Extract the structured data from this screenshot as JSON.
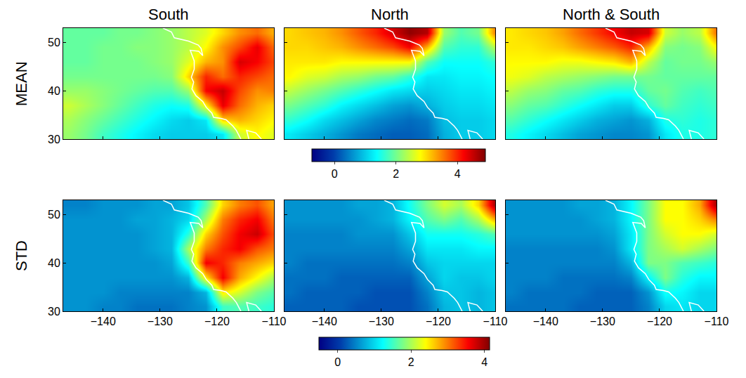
{
  "chart_data": {
    "type": "heatmap",
    "columns": [
      "South",
      "North",
      "North & South"
    ],
    "x": [
      -146,
      -143,
      -140,
      -137,
      -134,
      -131,
      -128,
      -125,
      -122,
      -119,
      -116,
      -113,
      -110
    ],
    "y": [
      31,
      34,
      37,
      40,
      43,
      46,
      49,
      52
    ],
    "xlim": [
      -147,
      -110
    ],
    "xticks": [
      -140,
      -130,
      -120,
      -110
    ],
    "ylim": [
      30,
      53
    ],
    "yticks": [
      30,
      40,
      50
    ],
    "coastline": {
      "lon": [
        -115.8,
        -116.6,
        -117.2,
        -118.4,
        -119.3,
        -120.6,
        -120.9,
        -121.9,
        -122.5,
        -123.0,
        -123.7,
        -124.4,
        -124.1,
        -124.5,
        -124.0,
        -124.0,
        -124.7,
        -123.2,
        -122.5,
        -122.8,
        -123.3,
        -125.0,
        -127.5,
        -128.0,
        -129.5,
        null,
        -114.4,
        -114.8,
        -113.2,
        -112.2
      ],
      "lat": [
        30.0,
        31.8,
        32.7,
        34.0,
        34.3,
        34.5,
        35.4,
        36.6,
        37.8,
        38.3,
        39.0,
        40.4,
        41.8,
        42.8,
        44.5,
        46.2,
        48.4,
        48.2,
        47.3,
        48.8,
        49.5,
        50.3,
        51.0,
        52.2,
        53.0,
        null,
        30.0,
        31.8,
        31.3,
        30.0
      ]
    },
    "rows": [
      {
        "label": "MEAN",
        "color_range": [
          -0.75,
          4.9
        ],
        "color_ticks": [
          0,
          2,
          4
        ],
        "cells": [
          [
            [
              2.2,
              2.0,
              1.7,
              1.5,
              1.3,
              1.1,
              1.0,
              1.0,
              1.0,
              1.2,
              2.5,
              2.8,
              2.6
            ],
            [
              2.3,
              2.1,
              1.9,
              1.7,
              1.5,
              1.3,
              1.1,
              1.0,
              1.2,
              3.0,
              3.2,
              3.0,
              2.8
            ],
            [
              2.5,
              2.3,
              2.1,
              1.9,
              1.7,
              1.5,
              1.4,
              1.5,
              2.8,
              4.3,
              3.6,
              3.2,
              3.0
            ],
            [
              2.2,
              2.2,
              2.1,
              2.0,
              1.9,
              1.8,
              1.8,
              2.2,
              4.2,
              4.5,
              3.8,
              3.4,
              3.5
            ],
            [
              2.0,
              2.0,
              2.0,
              2.0,
              2.0,
              2.0,
              2.1,
              3.0,
              4.0,
              3.6,
              4.0,
              3.8,
              3.6
            ],
            [
              1.9,
              1.9,
              2.0,
              2.0,
              2.0,
              2.1,
              2.2,
              2.6,
              3.2,
              3.4,
              4.4,
              4.2,
              3.8
            ],
            [
              1.9,
              1.9,
              2.0,
              2.0,
              2.1,
              2.1,
              2.2,
              2.4,
              2.8,
              3.4,
              3.8,
              4.3,
              3.6
            ],
            [
              1.9,
              1.9,
              1.9,
              2.0,
              2.0,
              2.1,
              2.2,
              2.4,
              2.6,
              3.0,
              3.4,
              3.6,
              3.2
            ]
          ],
          [
            [
              1.2,
              1.0,
              0.8,
              0.6,
              0.4,
              0.3,
              0.2,
              0.2,
              0.3,
              0.8,
              1.0,
              1.0,
              1.1
            ],
            [
              1.6,
              1.4,
              1.1,
              0.9,
              0.7,
              0.5,
              0.4,
              0.3,
              0.4,
              0.9,
              1.0,
              1.0,
              1.1
            ],
            [
              2.0,
              1.8,
              1.6,
              1.3,
              1.1,
              0.9,
              0.7,
              0.6,
              0.8,
              1.0,
              1.1,
              1.1,
              1.2
            ],
            [
              2.4,
              2.2,
              2.0,
              1.8,
              1.6,
              1.4,
              1.2,
              1.1,
              1.0,
              1.1,
              1.2,
              1.2,
              1.3
            ],
            [
              2.8,
              2.6,
              2.5,
              2.3,
              2.2,
              2.0,
              1.9,
              1.6,
              1.2,
              1.2,
              1.3,
              1.3,
              1.4
            ],
            [
              2.9,
              2.9,
              2.9,
              2.8,
              2.8,
              2.8,
              2.8,
              2.8,
              1.8,
              1.4,
              1.4,
              1.4,
              1.6
            ],
            [
              3.0,
              3.0,
              3.1,
              3.2,
              3.4,
              3.6,
              3.8,
              4.2,
              3.2,
              1.8,
              1.6,
              1.6,
              2.4
            ],
            [
              3.0,
              3.1,
              3.2,
              3.4,
              3.7,
              4.0,
              4.4,
              4.8,
              4.6,
              2.2,
              1.8,
              2.0,
              3.5
            ]
          ],
          [
            [
              1.5,
              1.3,
              1.1,
              0.9,
              0.7,
              0.6,
              0.5,
              0.5,
              0.6,
              1.2,
              1.5,
              1.5,
              1.6
            ],
            [
              1.8,
              1.6,
              1.4,
              1.2,
              1.0,
              0.8,
              0.7,
              0.6,
              0.8,
              1.5,
              1.6,
              1.5,
              1.6
            ],
            [
              2.1,
              1.9,
              1.8,
              1.6,
              1.4,
              1.2,
              1.0,
              1.0,
              1.6,
              1.9,
              1.7,
              1.6,
              1.7
            ],
            [
              2.4,
              2.2,
              2.1,
              1.9,
              1.8,
              1.6,
              1.5,
              1.5,
              1.9,
              2.0,
              1.8,
              1.7,
              1.8
            ],
            [
              2.7,
              2.6,
              2.4,
              2.3,
              2.2,
              2.1,
              2.0,
              2.0,
              2.0,
              1.9,
              1.9,
              1.9,
              1.9
            ],
            [
              2.8,
              2.8,
              2.8,
              2.7,
              2.7,
              2.8,
              2.9,
              3.2,
              2.4,
              1.9,
              2.0,
              2.0,
              2.2
            ],
            [
              2.9,
              2.9,
              3.0,
              3.1,
              3.3,
              3.5,
              3.7,
              4.0,
              3.2,
              2.1,
              2.0,
              2.1,
              2.8
            ],
            [
              2.9,
              3.0,
              3.1,
              3.3,
              3.6,
              3.9,
              4.2,
              4.5,
              4.4,
              2.5,
              2.2,
              2.4,
              3.6
            ]
          ]
        ]
      },
      {
        "label": "STD",
        "color_range": [
          -0.5,
          4.15
        ],
        "color_ticks": [
          0,
          2,
          4
        ],
        "cells": [
          [
            [
              0.6,
              0.6,
              0.5,
              0.5,
              0.4,
              0.4,
              0.4,
              0.5,
              0.6,
              1.5,
              1.6,
              1.5,
              1.4
            ],
            [
              0.6,
              0.6,
              0.6,
              0.5,
              0.5,
              0.5,
              0.5,
              0.5,
              0.8,
              2.5,
              2.2,
              1.8,
              1.6
            ],
            [
              0.6,
              0.6,
              0.6,
              0.6,
              0.6,
              0.6,
              0.6,
              0.8,
              2.5,
              3.6,
              2.8,
              2.4,
              2.0
            ],
            [
              0.6,
              0.6,
              0.6,
              0.6,
              0.6,
              0.6,
              0.7,
              1.5,
              3.6,
              3.4,
              3.0,
              2.8,
              2.6
            ],
            [
              0.6,
              0.6,
              0.6,
              0.6,
              0.6,
              0.7,
              0.8,
              2.0,
              3.0,
              3.4,
              3.6,
              3.2,
              3.0
            ],
            [
              0.6,
              0.6,
              0.6,
              0.6,
              0.6,
              0.7,
              0.8,
              1.4,
              2.6,
              3.2,
              3.6,
              3.8,
              3.2
            ],
            [
              0.6,
              0.6,
              0.6,
              0.6,
              0.7,
              0.7,
              0.8,
              1.0,
              2.0,
              3.0,
              3.4,
              3.6,
              3.0
            ],
            [
              0.5,
              0.5,
              0.6,
              0.6,
              0.6,
              0.7,
              0.7,
              0.9,
              1.6,
              2.6,
              3.0,
              3.2,
              2.8
            ]
          ],
          [
            [
              0.3,
              0.3,
              0.3,
              0.3,
              0.2,
              0.2,
              0.2,
              0.2,
              0.4,
              0.8,
              0.9,
              0.8,
              0.9
            ],
            [
              0.4,
              0.3,
              0.3,
              0.3,
              0.3,
              0.2,
              0.2,
              0.2,
              0.5,
              0.9,
              0.9,
              0.8,
              0.9
            ],
            [
              0.4,
              0.4,
              0.4,
              0.3,
              0.3,
              0.3,
              0.3,
              0.3,
              0.7,
              1.0,
              0.9,
              0.9,
              1.0
            ],
            [
              0.5,
              0.4,
              0.4,
              0.4,
              0.4,
              0.4,
              0.4,
              0.5,
              0.9,
              1.0,
              1.0,
              1.0,
              1.0
            ],
            [
              0.5,
              0.5,
              0.5,
              0.5,
              0.5,
              0.5,
              0.5,
              0.7,
              1.1,
              1.1,
              1.1,
              1.2,
              1.2
            ],
            [
              0.5,
              0.5,
              0.5,
              0.5,
              0.6,
              0.6,
              0.6,
              0.9,
              1.3,
              1.3,
              1.3,
              1.4,
              1.6
            ],
            [
              0.6,
              0.6,
              0.6,
              0.6,
              0.6,
              0.7,
              0.8,
              1.2,
              1.6,
              1.8,
              1.6,
              2.0,
              2.8
            ],
            [
              0.6,
              0.6,
              0.6,
              0.6,
              0.7,
              0.7,
              0.8,
              1.3,
              1.8,
              2.2,
              2.0,
              2.6,
              4.0
            ]
          ],
          [
            [
              0.4,
              0.4,
              0.4,
              0.4,
              0.3,
              0.3,
              0.3,
              0.3,
              0.5,
              1.0,
              1.1,
              1.0,
              1.0
            ],
            [
              0.5,
              0.4,
              0.4,
              0.4,
              0.4,
              0.3,
              0.3,
              0.3,
              0.6,
              1.3,
              1.2,
              1.0,
              1.0
            ],
            [
              0.5,
              0.5,
              0.5,
              0.4,
              0.4,
              0.4,
              0.4,
              0.5,
              1.2,
              1.8,
              1.4,
              1.2,
              1.2
            ],
            [
              0.5,
              0.5,
              0.5,
              0.5,
              0.5,
              0.5,
              0.5,
              0.8,
              1.8,
              1.8,
              1.6,
              1.5,
              1.4
            ],
            [
              0.5,
              0.5,
              0.5,
              0.5,
              0.5,
              0.5,
              0.6,
              1.1,
              1.8,
              2.0,
              2.2,
              2.0,
              1.8
            ],
            [
              0.6,
              0.6,
              0.6,
              0.6,
              0.6,
              0.6,
              0.7,
              1.1,
              1.8,
              2.2,
              2.4,
              2.4,
              2.2
            ],
            [
              0.6,
              0.6,
              0.6,
              0.6,
              0.6,
              0.7,
              0.8,
              1.2,
              1.8,
              2.4,
              2.4,
              2.6,
              3.0
            ],
            [
              0.6,
              0.6,
              0.6,
              0.6,
              0.7,
              0.7,
              0.8,
              1.2,
              1.8,
              2.4,
              2.4,
              2.8,
              4.0
            ]
          ]
        ]
      }
    ]
  }
}
